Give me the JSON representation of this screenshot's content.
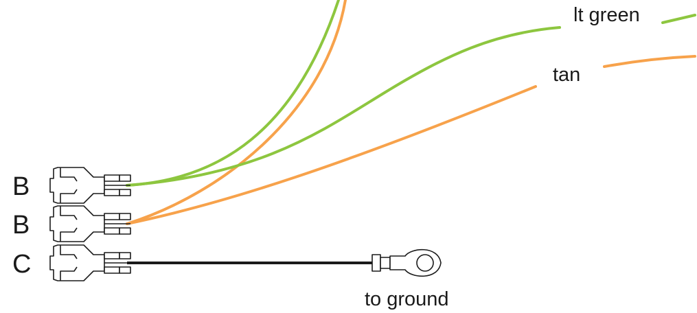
{
  "colors": {
    "lt_green": "#8dc63f",
    "tan": "#f7a24b",
    "ground_wire": "#1a1a1a",
    "outline": "#1a1a1a",
    "background": "#ffffff"
  },
  "connectors": [
    {
      "label": "B",
      "icon": "spade-connector-icon"
    },
    {
      "label": "B",
      "icon": "spade-connector-icon"
    },
    {
      "label": "C",
      "icon": "spade-connector-icon"
    }
  ],
  "wires": {
    "lt_green": {
      "label": "lt green"
    },
    "tan": {
      "label": "tan"
    }
  },
  "ground": {
    "label": "to ground",
    "icon": "ring-terminal-icon"
  }
}
